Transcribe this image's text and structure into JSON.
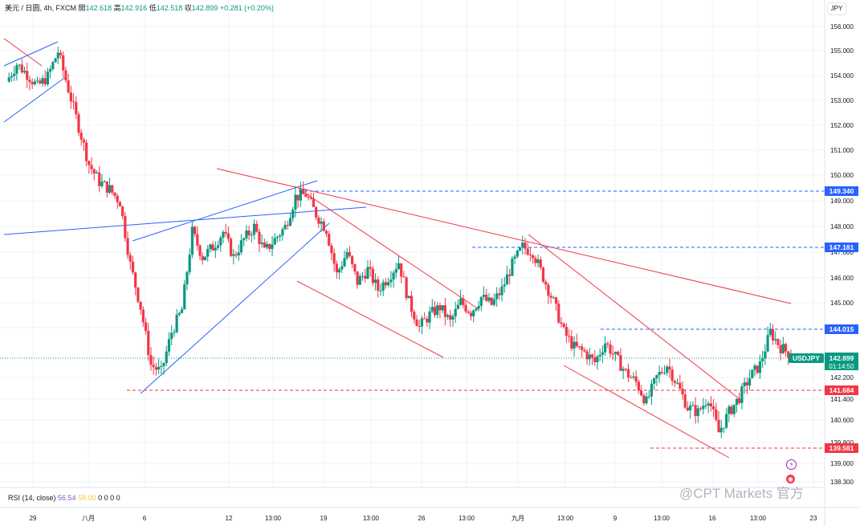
{
  "header": {
    "symbol": "美元 / 日圆, 4h, FXCM",
    "open_label": "開",
    "open": "142.618",
    "high_label": "高",
    "high": "142.916",
    "low_label": "低",
    "low": "142.518",
    "close_label": "収",
    "close": "142.899",
    "change": "+0.281 (+0.20%)",
    "currency": "JPY"
  },
  "rsi": {
    "label": "RSI (14, close)",
    "value": "56.54",
    "ma": "58.00",
    "extra": "0 0 0 0"
  },
  "watermark": "@CPT Markets 官方",
  "price_tag": {
    "symbol": "USDJPY",
    "price": "142.899",
    "countdown": "01:14:50"
  },
  "level_tags": [
    {
      "value": "149.340",
      "color": "#2962ff",
      "price": 149.34
    },
    {
      "value": "147.181",
      "color": "#2962ff",
      "price": 147.181
    },
    {
      "value": "144.015",
      "color": "#2962ff",
      "price": 144.015
    },
    {
      "value": "141.684",
      "color": "#f23645",
      "price": 141.684
    },
    {
      "value": "139.581",
      "color": "#f23645",
      "price": 139.581
    }
  ],
  "colors": {
    "up": "#089981",
    "down": "#f23645",
    "blue_line": "#2962ff",
    "red_line": "#f23645",
    "grid": "#f0f3fa"
  },
  "chart_data": {
    "type": "candlestick",
    "symbol": "USDJPY",
    "timeframe": "4h",
    "y_axis_labels": [
      "156.000",
      "155.000",
      "154.000",
      "153.000",
      "152.000",
      "151.000",
      "150.000",
      "149.000",
      "148.000",
      "147.000",
      "146.000",
      "145.000",
      "144.000",
      "142.200",
      "141.400",
      "140.600",
      "139.800",
      "139.000",
      "138.300"
    ],
    "x_axis_labels": [
      "29",
      "八月",
      "6",
      "12",
      "13:00",
      "19",
      "13:00",
      "26",
      "13:00",
      "九月",
      "13:00",
      "9",
      "13:00",
      "16",
      "13:00",
      "23"
    ],
    "close_series_approx": [
      153.8,
      154.5,
      154.1,
      153.6,
      154.0,
      155.0,
      153.5,
      152.0,
      150.5,
      149.8,
      149.5,
      149.0,
      146.5,
      144.8,
      142.5,
      142.2,
      143.8,
      144.7,
      147.8,
      146.8,
      147.2,
      147.8,
      146.8,
      147.5,
      148.0,
      147.0,
      147.5,
      148.0,
      149.2,
      149.3,
      148.5,
      147.9,
      146.1,
      147.0,
      145.8,
      146.3,
      145.5,
      146.0,
      146.6,
      145.0,
      144.0,
      144.5,
      144.8,
      144.2,
      145.0,
      144.6,
      145.2,
      144.9,
      145.5,
      146.5,
      147.2,
      147.0,
      146.0,
      145.0,
      143.8,
      143.2,
      143.0,
      142.6,
      143.4,
      142.8,
      142.2,
      141.8,
      141.0,
      142.0,
      142.5,
      141.7,
      140.8,
      140.6,
      141.2,
      139.8,
      140.6,
      141.2,
      142.0,
      142.5,
      143.8,
      143.2,
      142.9
    ]
  }
}
